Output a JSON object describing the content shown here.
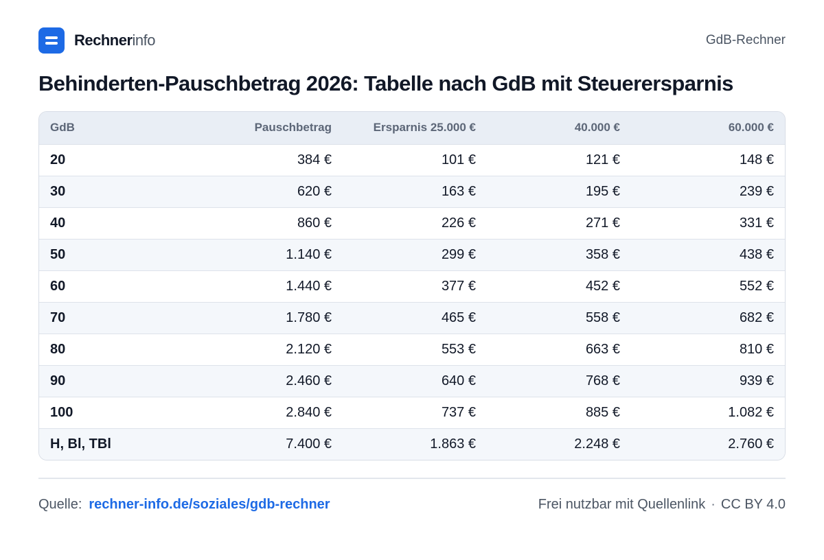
{
  "brand": {
    "name_strong": "Rechner",
    "name_light": "info"
  },
  "header": {
    "label": "GdB-Rechner"
  },
  "title": "Behinderten-Pauschbetrag 2026: Tabelle nach GdB mit Steuerersparnis",
  "table": {
    "columns": [
      "GdB",
      "Pauschbetrag",
      "Ersparnis 25.000 €",
      "40.000 €",
      "60.000 €"
    ],
    "rows": [
      [
        "20",
        "384 €",
        "101 €",
        "121 €",
        "148 €"
      ],
      [
        "30",
        "620 €",
        "163 €",
        "195 €",
        "239 €"
      ],
      [
        "40",
        "860 €",
        "226 €",
        "271 €",
        "331 €"
      ],
      [
        "50",
        "1.140 €",
        "299 €",
        "358 €",
        "438 €"
      ],
      [
        "60",
        "1.440 €",
        "377 €",
        "452 €",
        "552 €"
      ],
      [
        "70",
        "1.780 €",
        "465 €",
        "558 €",
        "682 €"
      ],
      [
        "80",
        "2.120 €",
        "553 €",
        "663 €",
        "810 €"
      ],
      [
        "90",
        "2.460 €",
        "640 €",
        "768 €",
        "939 €"
      ],
      [
        "100",
        "2.840 €",
        "737 €",
        "885 €",
        "1.082 €"
      ],
      [
        "H, Bl, TBl",
        "7.400 €",
        "1.863 €",
        "2.248 €",
        "2.760 €"
      ]
    ]
  },
  "footer": {
    "source_label": "Quelle:",
    "source_link": "rechner-info.de/soziales/gdb-rechner",
    "license_note": "Frei nutzbar mit Quellenlink",
    "separator": "·",
    "license": "CC BY 4.0"
  },
  "colors": {
    "accent": "#1d6ae5",
    "header_bg": "#e9eef5",
    "row_alt_bg": "#f4f7fb"
  },
  "icons": {
    "logo": "rechnerinfo-logo-icon"
  }
}
